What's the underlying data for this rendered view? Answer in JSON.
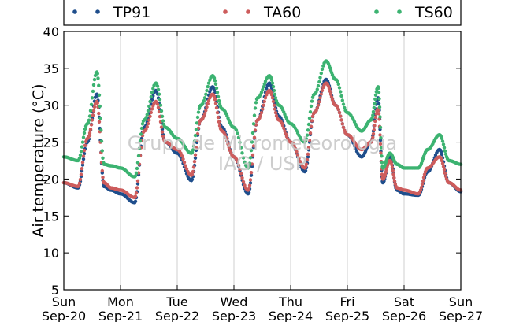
{
  "chart_data": {
    "type": "scatter",
    "ylabel": "Air temperature (°C)",
    "ylim": [
      5,
      40
    ],
    "yticks": [
      5,
      10,
      15,
      20,
      25,
      30,
      35,
      40
    ],
    "xlim": [
      "2015-09-20",
      "2015-09-27"
    ],
    "xticks": [
      {
        "date": "2015-09-20",
        "line1": "Sun",
        "line2": "Sep-20"
      },
      {
        "date": "2015-09-21",
        "line1": "Mon",
        "line2": "Sep-21"
      },
      {
        "date": "2015-09-22",
        "line1": "Tue",
        "line2": "Sep-22"
      },
      {
        "date": "2015-09-23",
        "line1": "Wed",
        "line2": "Sep-23"
      },
      {
        "date": "2015-09-24",
        "line1": "Thu",
        "line2": "Sep-24"
      },
      {
        "date": "2015-09-25",
        "line1": "Fri",
        "line2": "Sep-25"
      },
      {
        "date": "2015-09-26",
        "line1": "Sat",
        "line2": "Sep-26"
      },
      {
        "date": "2015-09-27",
        "line1": "Sun",
        "line2": "Sep-27"
      }
    ],
    "grid": "vertical",
    "legend_position": "top",
    "watermark": [
      "Grupo de Micrometeorologia",
      "IAG / USP"
    ],
    "series": [
      {
        "name": "TP91",
        "color": "#1f4e8c",
        "x": [
          "2015-09-20 00:00",
          "2015-09-20 06:00",
          "2015-09-20 10:00",
          "2015-09-20 14:00",
          "2015-09-20 17:00",
          "2015-09-20 20:00",
          "2015-09-21 00:00",
          "2015-09-21 06:00",
          "2015-09-21 10:00",
          "2015-09-21 15:00",
          "2015-09-21 19:00",
          "2015-09-22 00:00",
          "2015-09-22 06:00",
          "2015-09-22 10:00",
          "2015-09-22 15:00",
          "2015-09-22 19:00",
          "2015-09-23 00:00",
          "2015-09-23 06:00",
          "2015-09-23 10:00",
          "2015-09-23 15:00",
          "2015-09-23 19:00",
          "2015-09-24 00:00",
          "2015-09-24 06:00",
          "2015-09-24 10:00",
          "2015-09-24 15:00",
          "2015-09-24 19:00",
          "2015-09-25 00:00",
          "2015-09-25 06:00",
          "2015-09-25 10:00",
          "2015-09-25 13:00",
          "2015-09-25 15:00",
          "2015-09-25 18:00",
          "2015-09-25 21:00",
          "2015-09-26 00:00",
          "2015-09-26 06:00",
          "2015-09-26 10:00",
          "2015-09-26 15:00",
          "2015-09-26 19:00",
          "2015-09-27 00:00"
        ],
        "y": [
          19.5,
          18.8,
          25.0,
          31.5,
          19.0,
          18.5,
          18.0,
          16.8,
          27.0,
          32.0,
          25.0,
          23.5,
          19.8,
          28.0,
          32.5,
          27.0,
          23.0,
          18.0,
          28.0,
          33.0,
          28.5,
          25.0,
          21.0,
          29.0,
          33.5,
          30.0,
          26.0,
          23.0,
          25.0,
          31.0,
          19.5,
          23.0,
          18.5,
          18.0,
          17.8,
          21.0,
          24.0,
          19.5,
          18.3
        ]
      },
      {
        "name": "TA60",
        "color": "#cd5c5c",
        "x": [
          "2015-09-20 00:00",
          "2015-09-20 06:00",
          "2015-09-20 10:00",
          "2015-09-20 14:00",
          "2015-09-20 17:00",
          "2015-09-20 20:00",
          "2015-09-21 00:00",
          "2015-09-21 06:00",
          "2015-09-21 10:00",
          "2015-09-21 15:00",
          "2015-09-21 19:00",
          "2015-09-22 00:00",
          "2015-09-22 06:00",
          "2015-09-22 10:00",
          "2015-09-22 15:00",
          "2015-09-22 19:00",
          "2015-09-23 00:00",
          "2015-09-23 06:00",
          "2015-09-23 10:00",
          "2015-09-23 15:00",
          "2015-09-23 19:00",
          "2015-09-24 00:00",
          "2015-09-24 06:00",
          "2015-09-24 10:00",
          "2015-09-24 15:00",
          "2015-09-24 19:00",
          "2015-09-25 00:00",
          "2015-09-25 06:00",
          "2015-09-25 10:00",
          "2015-09-25 13:00",
          "2015-09-25 15:00",
          "2015-09-25 18:00",
          "2015-09-25 21:00",
          "2015-09-26 00:00",
          "2015-09-26 06:00",
          "2015-09-26 10:00",
          "2015-09-26 15:00",
          "2015-09-26 19:00",
          "2015-09-27 00:00"
        ],
        "y": [
          19.5,
          19.0,
          25.5,
          30.5,
          19.5,
          18.8,
          18.5,
          17.5,
          26.5,
          30.5,
          25.0,
          24.0,
          20.5,
          28.0,
          31.5,
          26.5,
          23.0,
          18.5,
          28.0,
          32.0,
          28.0,
          25.0,
          21.5,
          29.0,
          33.0,
          30.0,
          26.0,
          24.0,
          25.0,
          29.5,
          20.0,
          22.5,
          18.8,
          18.5,
          18.0,
          21.5,
          23.0,
          19.5,
          18.5
        ]
      },
      {
        "name": "TS60",
        "color": "#3cb371",
        "x": [
          "2015-09-20 00:00",
          "2015-09-20 06:00",
          "2015-09-20 10:00",
          "2015-09-20 14:00",
          "2015-09-20 17:00",
          "2015-09-20 20:00",
          "2015-09-21 00:00",
          "2015-09-21 06:00",
          "2015-09-21 10:00",
          "2015-09-21 15:00",
          "2015-09-21 19:00",
          "2015-09-22 00:00",
          "2015-09-22 06:00",
          "2015-09-22 10:00",
          "2015-09-22 15:00",
          "2015-09-22 19:00",
          "2015-09-23 00:00",
          "2015-09-23 06:00",
          "2015-09-23 10:00",
          "2015-09-23 15:00",
          "2015-09-23 19:00",
          "2015-09-24 00:00",
          "2015-09-24 06:00",
          "2015-09-24 10:00",
          "2015-09-24 15:00",
          "2015-09-24 19:00",
          "2015-09-25 00:00",
          "2015-09-25 06:00",
          "2015-09-25 10:00",
          "2015-09-25 13:00",
          "2015-09-25 15:00",
          "2015-09-25 18:00",
          "2015-09-25 21:00",
          "2015-09-26 00:00",
          "2015-09-26 06:00",
          "2015-09-26 10:00",
          "2015-09-26 15:00",
          "2015-09-26 19:00",
          "2015-09-27 00:00"
        ],
        "y": [
          23.0,
          22.5,
          27.5,
          34.5,
          22.0,
          21.8,
          21.5,
          20.3,
          28.0,
          33.0,
          27.0,
          25.5,
          23.5,
          30.0,
          34.0,
          29.5,
          27.0,
          21.5,
          31.0,
          34.0,
          30.0,
          27.5,
          25.0,
          31.5,
          36.0,
          33.5,
          29.0,
          26.5,
          28.0,
          32.5,
          21.5,
          23.5,
          22.0,
          21.5,
          21.5,
          24.0,
          26.0,
          22.5,
          22.0
        ]
      }
    ]
  }
}
